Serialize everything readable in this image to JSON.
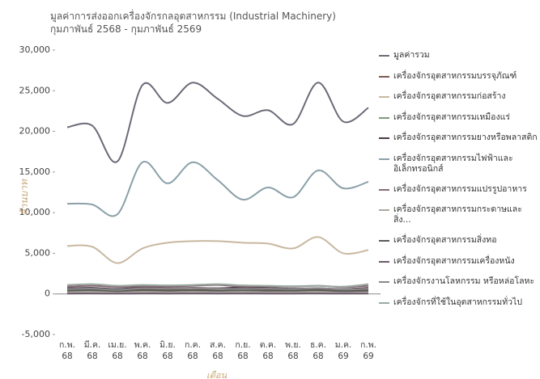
{
  "chart_data": {
    "type": "line",
    "title": "มูลค่าการส่งออกเครื่องจักรกลอุตสาหกรรม (Industrial Machinery) กุมภาพันธ์ 2568 - กุมภาพันธ์ 2569",
    "y_label": "ล้านบาท",
    "x_label": "เดือน",
    "categories": [
      "ก.พ. 68",
      "มี.ค. 68",
      "เม.ย. 68",
      "พ.ค. 68",
      "มิ.ย. 68",
      "ก.ค. 68",
      "ส.ค. 68",
      "ก.ย. 68",
      "ต.ค. 68",
      "พ.ย. 68",
      "ธ.ค. 68",
      "ม.ค. 69",
      "ก.พ. 69"
    ],
    "ylim": [
      -5000,
      30000
    ],
    "yticks": [
      {
        "value": -5000,
        "label": "-5,000"
      },
      0,
      {
        "value": 5000,
        "label": "5,000"
      },
      {
        "value": 10000,
        "label": "10,000"
      },
      {
        "value": 15000,
        "label": "15,000"
      },
      {
        "value": 20000,
        "label": "20,000"
      },
      {
        "value": 25000,
        "label": "25,000"
      },
      {
        "value": 30000,
        "label": "30,000"
      }
    ],
    "grid": false,
    "series": [
      {
        "name": "มูลค่ารวม",
        "color": "#6b6b78",
        "values": [
          20500,
          20700,
          16300,
          25700,
          23500,
          26000,
          24000,
          21900,
          22600,
          20900,
          26000,
          21200,
          22900
        ]
      },
      {
        "name": "เครื่องจักรอุตสาหกรรมบรรจุภัณฑ์",
        "color": "#7a5a50",
        "values": [
          500,
          550,
          450,
          600,
          550,
          500,
          600,
          550,
          500,
          500,
          600,
          450,
          550
        ]
      },
      {
        "name": "เครื่องจักรอุตสาหกรรมก่อสร้าง",
        "color": "#c8b8a0",
        "values": [
          5900,
          5800,
          3800,
          5600,
          6300,
          6500,
          6500,
          6300,
          6200,
          5600,
          7000,
          5000,
          5400
        ]
      },
      {
        "name": "เครื่องจักรอุตสาหกรรมเหมืองแร่",
        "color": "#7a9a80",
        "values": [
          300,
          350,
          250,
          400,
          300,
          350,
          300,
          300,
          350,
          300,
          350,
          300,
          350
        ]
      },
      {
        "name": "เครื่องจักรอุตสาหกรรมยางหรือพลาสติก",
        "color": "#4a3a48",
        "values": [
          700,
          750,
          600,
          800,
          700,
          750,
          700,
          800,
          750,
          650,
          700,
          600,
          750
        ]
      },
      {
        "name": "เครื่องจักรอุตสาหกรรมไฟฟ้าและอิเล็กทรอนิกส์",
        "color": "#8aa0a8",
        "values": [
          11100,
          11000,
          9800,
          16200,
          13600,
          16200,
          14000,
          11600,
          13100,
          11900,
          15200,
          13000,
          13800
        ]
      },
      {
        "name": "เครื่องจักรอุตสาหกรรมแปรรูปอาหาร",
        "color": "#8a6a78",
        "values": [
          900,
          1000,
          850,
          950,
          900,
          1000,
          1100,
          900,
          950,
          900,
          1000,
          850,
          1000
        ]
      },
      {
        "name": "เครื่องจักรอุตสาหกรรมกระดาษและสิ่ง...",
        "color": "#b0a8a0",
        "values": [
          200,
          250,
          200,
          250,
          200,
          250,
          200,
          250,
          200,
          200,
          250,
          200,
          250
        ]
      },
      {
        "name": "เครื่องจักรอุตสาหกรรมสิ่งทอ",
        "color": "#5a5a5a",
        "values": [
          400,
          450,
          350,
          450,
          400,
          450,
          400,
          450,
          400,
          400,
          450,
          350,
          400
        ]
      },
      {
        "name": "เครื่องจักรอุตสาหกรรมเครื่องหนัง",
        "color": "#6a5a6a",
        "values": [
          50,
          60,
          40,
          60,
          50,
          60,
          50,
          60,
          50,
          50,
          60,
          40,
          50
        ]
      },
      {
        "name": "เครื่องจักรงานโลหกรรม หรือหล่อโลหะ",
        "color": "#8a8a8a",
        "values": [
          600,
          650,
          500,
          700,
          650,
          700,
          650,
          600,
          650,
          600,
          700,
          550,
          650
        ]
      },
      {
        "name": "เครื่องจักรที่ใช้ในอุตสาหกรรมทั่วไป",
        "color": "#9aaaa0",
        "values": [
          1100,
          1200,
          1000,
          1100,
          1050,
          1100,
          1200,
          1050,
          1000,
          950,
          1000,
          900,
          1200
        ]
      }
    ]
  }
}
